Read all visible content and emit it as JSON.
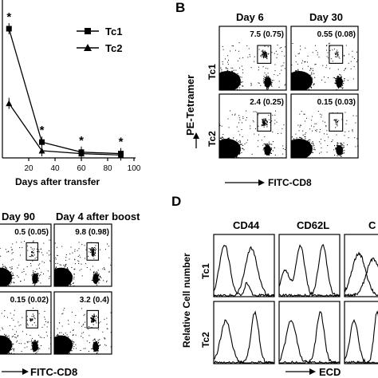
{
  "panels": {
    "A": {
      "letter": "",
      "xlabel": "Days after transfer",
      "xticks": [
        "20",
        "40",
        "60",
        "80",
        "100"
      ],
      "legend": [
        "Tc1",
        "Tc2"
      ],
      "chart_data": {
        "type": "line",
        "x": [
          5,
          30,
          60,
          90
        ],
        "series": [
          {
            "name": "Tc1",
            "marker": "square",
            "values": [
              9.0,
              1.1,
              0.4,
              0.3
            ]
          },
          {
            "name": "Tc2",
            "marker": "triangle",
            "values": [
              3.8,
              0.5,
              0.3,
              0.2
            ]
          }
        ],
        "xlim": [
          0,
          100
        ],
        "significance": [
          "*",
          "*",
          "*",
          "*"
        ]
      }
    },
    "B": {
      "letter": "B",
      "columns": [
        "Day 6",
        "Day 30"
      ],
      "rows": [
        "Tc1",
        "Tc2"
      ],
      "ylabel": "PE-Tetramer",
      "xlabel": "FITC-CD8",
      "gates": [
        [
          "7.5 (0.75)",
          "0.55 (0.08)"
        ],
        [
          "2.4 (0.25)",
          "0.15 (0.03)"
        ]
      ]
    },
    "C": {
      "columns": [
        "Day 90",
        "Day 4 after boost"
      ],
      "xlabel": "FITC-CD8",
      "gates": [
        [
          "0.5 (0.05)",
          "9.8 (0.98)"
        ],
        [
          "0.15 (0.02)",
          "3.2 (0.4)"
        ]
      ]
    },
    "D": {
      "letter": "D",
      "columns": [
        "CD44",
        "CD62L",
        "C"
      ],
      "rows": [
        "Tc1",
        "Tc2"
      ],
      "ylabel": "Relative Cell number",
      "xlabel": "ECD"
    }
  },
  "colors": {
    "ink": "#000000",
    "background": "#ffffff"
  }
}
